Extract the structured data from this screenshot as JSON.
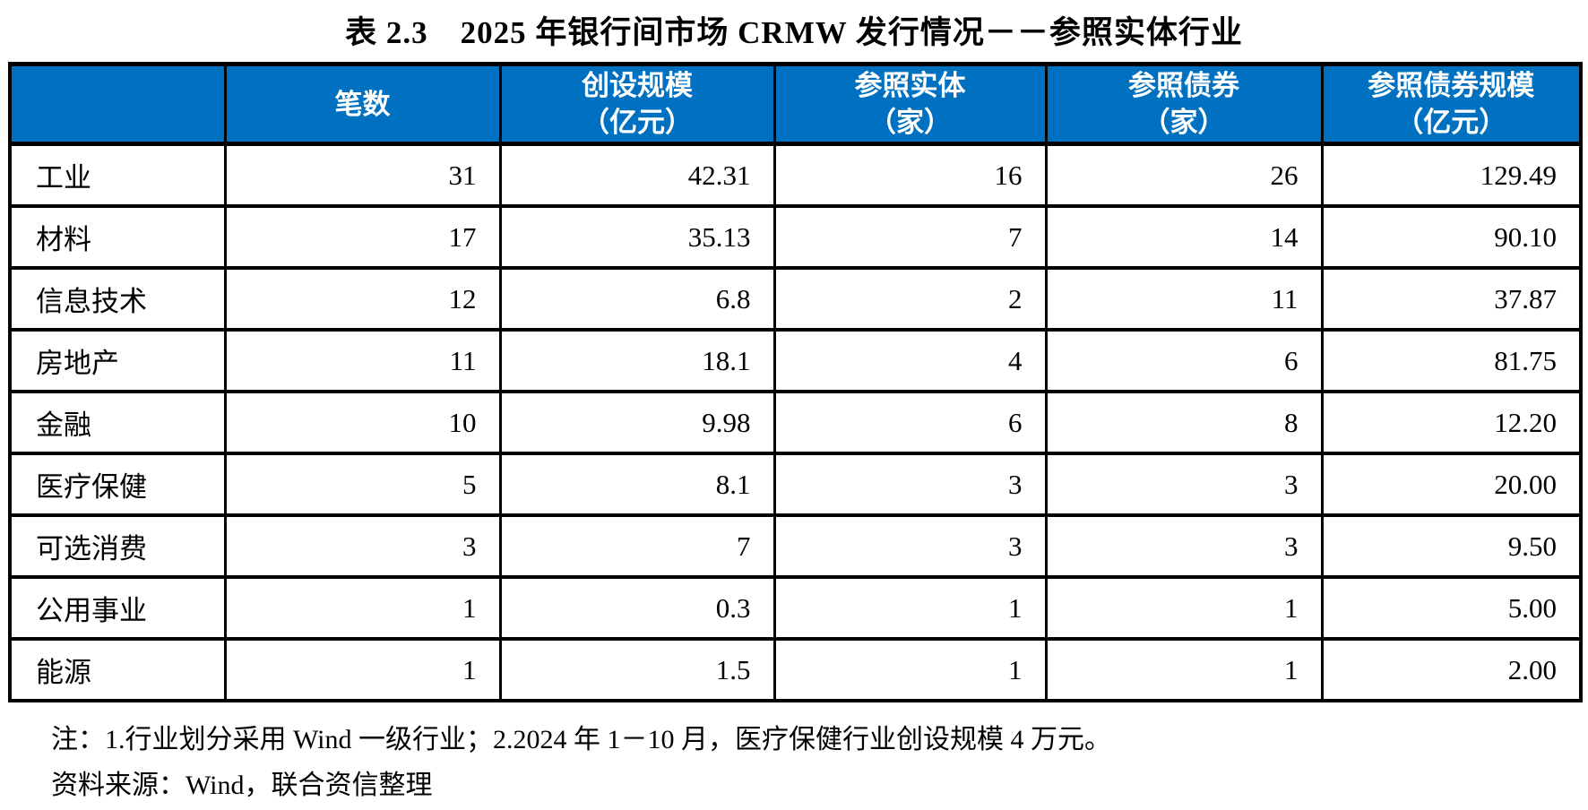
{
  "title": "表 2.3　2025 年银行间市场 CRMW 发行情况－－参照实体行业",
  "accent_color": "#0070C0",
  "table": {
    "columns": [
      {
        "line1": "",
        "line2": ""
      },
      {
        "line1": "笔数",
        "line2": ""
      },
      {
        "line1": "创设规模",
        "line2": "（亿元）"
      },
      {
        "line1": "参照实体",
        "line2": "（家）"
      },
      {
        "line1": "参照债券",
        "line2": "（家）"
      },
      {
        "line1": "参照债券规模",
        "line2": "（亿元）"
      }
    ],
    "rows": [
      {
        "industry": "工业",
        "values": [
          "31",
          "42.31",
          "16",
          "26",
          "129.49"
        ]
      },
      {
        "industry": "材料",
        "values": [
          "17",
          "35.13",
          "7",
          "14",
          "90.10"
        ]
      },
      {
        "industry": "信息技术",
        "values": [
          "12",
          "6.8",
          "2",
          "11",
          "37.87"
        ]
      },
      {
        "industry": "房地产",
        "values": [
          "11",
          "18.1",
          "4",
          "6",
          "81.75"
        ]
      },
      {
        "industry": "金融",
        "values": [
          "10",
          "9.98",
          "6",
          "8",
          "12.20"
        ]
      },
      {
        "industry": "医疗保健",
        "values": [
          "5",
          "8.1",
          "3",
          "3",
          "20.00"
        ]
      },
      {
        "industry": "可选消费",
        "values": [
          "3",
          "7",
          "3",
          "3",
          "9.50"
        ]
      },
      {
        "industry": "公用事业",
        "values": [
          "1",
          "0.3",
          "1",
          "1",
          "5.00"
        ]
      },
      {
        "industry": "能源",
        "values": [
          "1",
          "1.5",
          "1",
          "1",
          "2.00"
        ]
      }
    ]
  },
  "notes": {
    "note": "注：1.行业划分采用 Wind 一级行业；2.2024 年 1－10 月，医疗保健行业创设规模 4 万元。",
    "source": "资料来源：Wind，联合资信整理"
  }
}
